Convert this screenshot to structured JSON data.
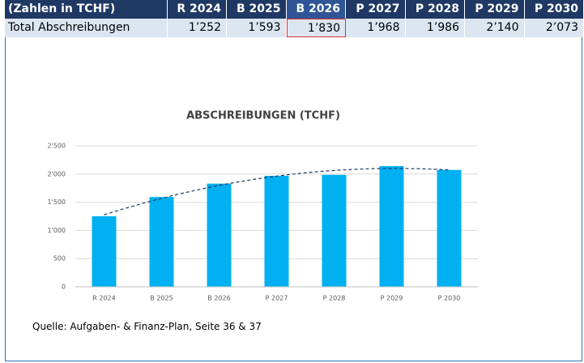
{
  "table": {
    "header": [
      "(Zahlen in TCHF)",
      "R 2024",
      "B 2025",
      "B 2026",
      "P 2027",
      "P 2028",
      "P 2029",
      "P 2030"
    ],
    "rows": [
      [
        "Total Abschreibungen",
        "1’252",
        "1’593",
        "1’830",
        "1’968",
        "1’986",
        "2’140",
        "2’073"
      ]
    ]
  },
  "chart_data": {
    "type": "bar",
    "title": "ABSCHREIBUNGEN (TCHF)",
    "categories": [
      "R 2024",
      "B 2025",
      "B 2026",
      "P 2027",
      "P 2028",
      "P 2029",
      "P 2030"
    ],
    "values": [
      1252,
      1593,
      1830,
      1968,
      1986,
      2140,
      2073
    ],
    "color": "#00b0f0",
    "ylim": [
      0,
      2500
    ],
    "yticks": [
      0,
      500,
      {
        "value": 1000,
        "label": "1'000"
      },
      {
        "value": 1500,
        "label": "1'500"
      },
      {
        "value": 2000,
        "label": "2'000"
      },
      {
        "value": 2500,
        "label": "2'500"
      }
    ],
    "grid": true,
    "trendline": {
      "type": "polynomial",
      "order": 2,
      "color": "#1f3864"
    }
  },
  "source": "Quelle: Aufgaben- & Finanz-Plan, Seite 36 & 37"
}
